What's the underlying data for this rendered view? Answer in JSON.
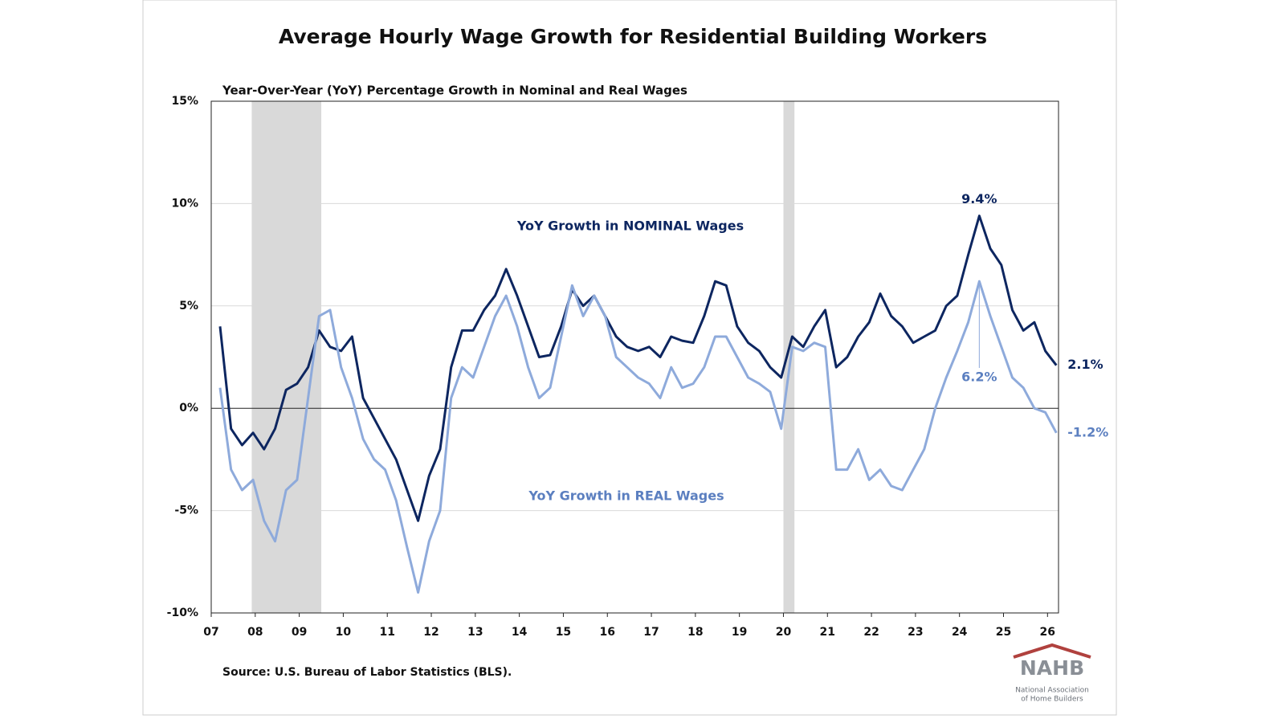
{
  "chart_data": {
    "type": "line",
    "title": "Average Hourly Wage Growth for Residential Building Workers",
    "subtitle": "Year-Over-Year (YoY) Percentage Growth in Nominal and Real Wages",
    "source": "Source: U.S. Bureau of Labor Statistics (BLS).",
    "logo": {
      "name": "NAHB",
      "line1": "National Association",
      "line2": "of Home Builders"
    },
    "x": [
      2007.2,
      2007.45,
      2007.7,
      2007.95,
      2008.2,
      2008.45,
      2008.7,
      2008.95,
      2009.2,
      2009.45,
      2009.7,
      2009.95,
      2010.2,
      2010.45,
      2010.7,
      2010.95,
      2011.2,
      2011.45,
      2011.7,
      2011.95,
      2012.2,
      2012.45,
      2012.7,
      2012.95,
      2013.2,
      2013.45,
      2013.7,
      2013.95,
      2014.2,
      2014.45,
      2014.7,
      2014.95,
      2015.2,
      2015.45,
      2015.7,
      2015.95,
      2016.2,
      2016.45,
      2016.7,
      2016.95,
      2017.2,
      2017.45,
      2017.7,
      2017.95,
      2018.2,
      2018.45,
      2018.7,
      2018.95,
      2019.2,
      2019.45,
      2019.7,
      2019.95,
      2020.2,
      2020.45,
      2020.7,
      2020.95,
      2021.2,
      2021.45,
      2021.7,
      2021.95,
      2022.2,
      2022.45,
      2022.7,
      2022.95,
      2023.2,
      2023.45,
      2023.7,
      2023.95,
      2024.2,
      2024.45,
      2024.7,
      2024.95,
      2025.2,
      2025.45,
      2025.7,
      2025.95,
      2026.2
    ],
    "series": [
      {
        "name": "YoY Growth in NOMINAL Wages",
        "color": "#0d2660",
        "values": [
          4.0,
          -1.0,
          -1.8,
          -1.2,
          -2.0,
          -1.0,
          0.9,
          1.2,
          2.0,
          3.8,
          3.0,
          2.8,
          3.5,
          0.5,
          -0.5,
          -1.5,
          -2.5,
          -4.0,
          -5.5,
          -3.3,
          -2.0,
          2.0,
          3.8,
          3.8,
          4.8,
          5.5,
          6.8,
          5.5,
          4.0,
          2.5,
          2.6,
          4.0,
          5.8,
          5.0,
          5.5,
          4.5,
          3.5,
          3.0,
          2.8,
          3.0,
          2.5,
          3.5,
          3.3,
          3.2,
          4.5,
          6.2,
          6.0,
          4.0,
          3.2,
          2.8,
          2.0,
          1.5,
          3.5,
          3.0,
          4.0,
          4.8,
          2.0,
          2.5,
          3.5,
          4.2,
          5.6,
          4.5,
          4.0,
          3.2,
          3.5,
          3.8,
          5.0,
          5.5,
          7.5,
          9.4,
          7.8,
          7.0,
          4.8,
          3.8,
          4.2,
          2.8,
          2.1
        ]
      },
      {
        "name": "YoY Growth in REAL Wages",
        "color": "#8eaadb",
        "values": [
          1.0,
          -3.0,
          -4.0,
          -3.5,
          -5.5,
          -6.5,
          -4.0,
          -3.5,
          0.5,
          4.5,
          4.8,
          2.0,
          0.5,
          -1.5,
          -2.5,
          -3.0,
          -4.5,
          -6.8,
          -9.0,
          -6.5,
          -5.0,
          0.5,
          2.0,
          1.5,
          3.0,
          4.5,
          5.5,
          4.0,
          2.0,
          0.5,
          1.0,
          3.5,
          6.0,
          4.5,
          5.5,
          4.5,
          2.5,
          2.0,
          1.5,
          1.2,
          0.5,
          2.0,
          1.0,
          1.2,
          2.0,
          3.5,
          3.5,
          2.5,
          1.5,
          1.2,
          0.8,
          -1.0,
          3.0,
          2.8,
          3.2,
          3.0,
          -3.0,
          -3.0,
          -2.0,
          -3.5,
          -3.0,
          -3.8,
          -4.0,
          -3.0,
          -2.0,
          0.0,
          1.5,
          2.8,
          4.2,
          6.2,
          4.5,
          3.0,
          1.5,
          1.0,
          0.0,
          -0.2,
          -1.2
        ]
      }
    ],
    "annotations": [
      {
        "text": "9.4%",
        "x": 2024.45,
        "y": 9.4,
        "series": 0
      },
      {
        "text": "6.2%",
        "x": 2024.45,
        "y": 6.2,
        "series": 1
      },
      {
        "text": "2.1%",
        "x": 2026.2,
        "y": 2.1,
        "series": 0
      },
      {
        "text": "-1.2%",
        "x": 2026.2,
        "y": -1.2,
        "series": 1
      }
    ],
    "recessions": [
      [
        2007.92,
        2009.5
      ],
      [
        2020.0,
        2020.25
      ]
    ],
    "xlim": [
      2007,
      2026.25
    ],
    "xticks": [
      {
        "value": 2007,
        "label": "07"
      },
      {
        "value": 2008,
        "label": "08"
      },
      {
        "value": 2009,
        "label": "09"
      },
      {
        "value": 2010,
        "label": "10"
      },
      {
        "value": 2011,
        "label": "11"
      },
      {
        "value": 2012,
        "label": "12"
      },
      {
        "value": 2013,
        "label": "13"
      },
      {
        "value": 2014,
        "label": "14"
      },
      {
        "value": 2015,
        "label": "15"
      },
      {
        "value": 2016,
        "label": "16"
      },
      {
        "value": 2017,
        "label": "17"
      },
      {
        "value": 2018,
        "label": "18"
      },
      {
        "value": 2019,
        "label": "19"
      },
      {
        "value": 2020,
        "label": "20"
      },
      {
        "value": 2021,
        "label": "21"
      },
      {
        "value": 2022,
        "label": "22"
      },
      {
        "value": 2023,
        "label": "23"
      },
      {
        "value": 2024,
        "label": "24"
      },
      {
        "value": 2025,
        "label": "25"
      },
      {
        "value": 2026,
        "label": "26"
      }
    ],
    "ylim": [
      -10,
      15
    ],
    "yticks": [
      {
        "value": -10,
        "label": "-10%"
      },
      {
        "value": -5,
        "label": "-5%"
      },
      {
        "value": 0,
        "label": "0%"
      },
      {
        "value": 5,
        "label": "5%"
      },
      {
        "value": 10,
        "label": "10%"
      },
      {
        "value": 15,
        "label": "15%"
      }
    ],
    "grid": true
  }
}
